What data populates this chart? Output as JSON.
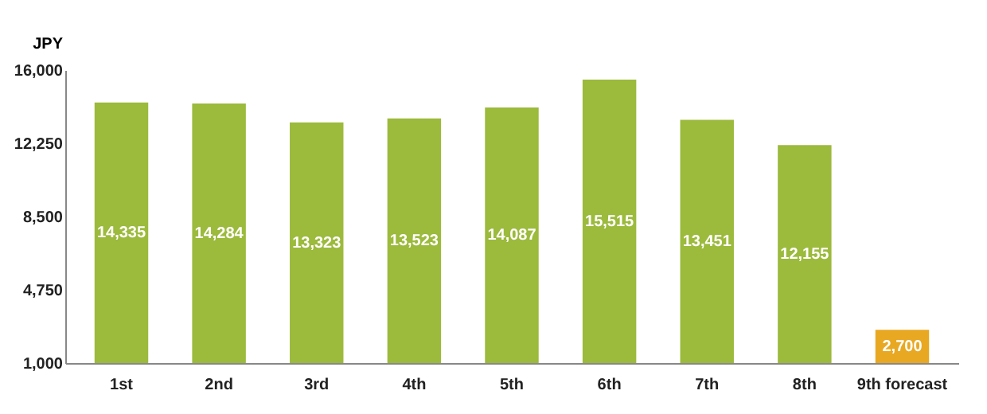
{
  "chart_data": {
    "type": "bar",
    "ylabel": "JPY",
    "categories": [
      "1st",
      "2nd",
      "3rd",
      "4th",
      "5th",
      "6th",
      "7th",
      "8th",
      "9th forecast"
    ],
    "values": [
      14335,
      14284,
      13323,
      13523,
      14087,
      15515,
      13451,
      12155,
      2700
    ],
    "value_labels": [
      "14,335",
      "14,284",
      "13,323",
      "13,523",
      "14,087",
      "15,515",
      "13,451",
      "12,155",
      "2,700"
    ],
    "colors": [
      "#9cba3c",
      "#9cba3c",
      "#9cba3c",
      "#9cba3c",
      "#9cba3c",
      "#9cba3c",
      "#9cba3c",
      "#9cba3c",
      "#e8a822"
    ],
    "ylim": [
      1000,
      16000
    ],
    "yticks": [
      {
        "value": 1000,
        "label": "1,000"
      },
      {
        "value": 4750,
        "label": "4,750"
      },
      {
        "value": 8500,
        "label": "8,500"
      },
      {
        "value": 12250,
        "label": "12,250"
      },
      {
        "value": 16000,
        "label": "16,000"
      }
    ],
    "grid": false
  }
}
